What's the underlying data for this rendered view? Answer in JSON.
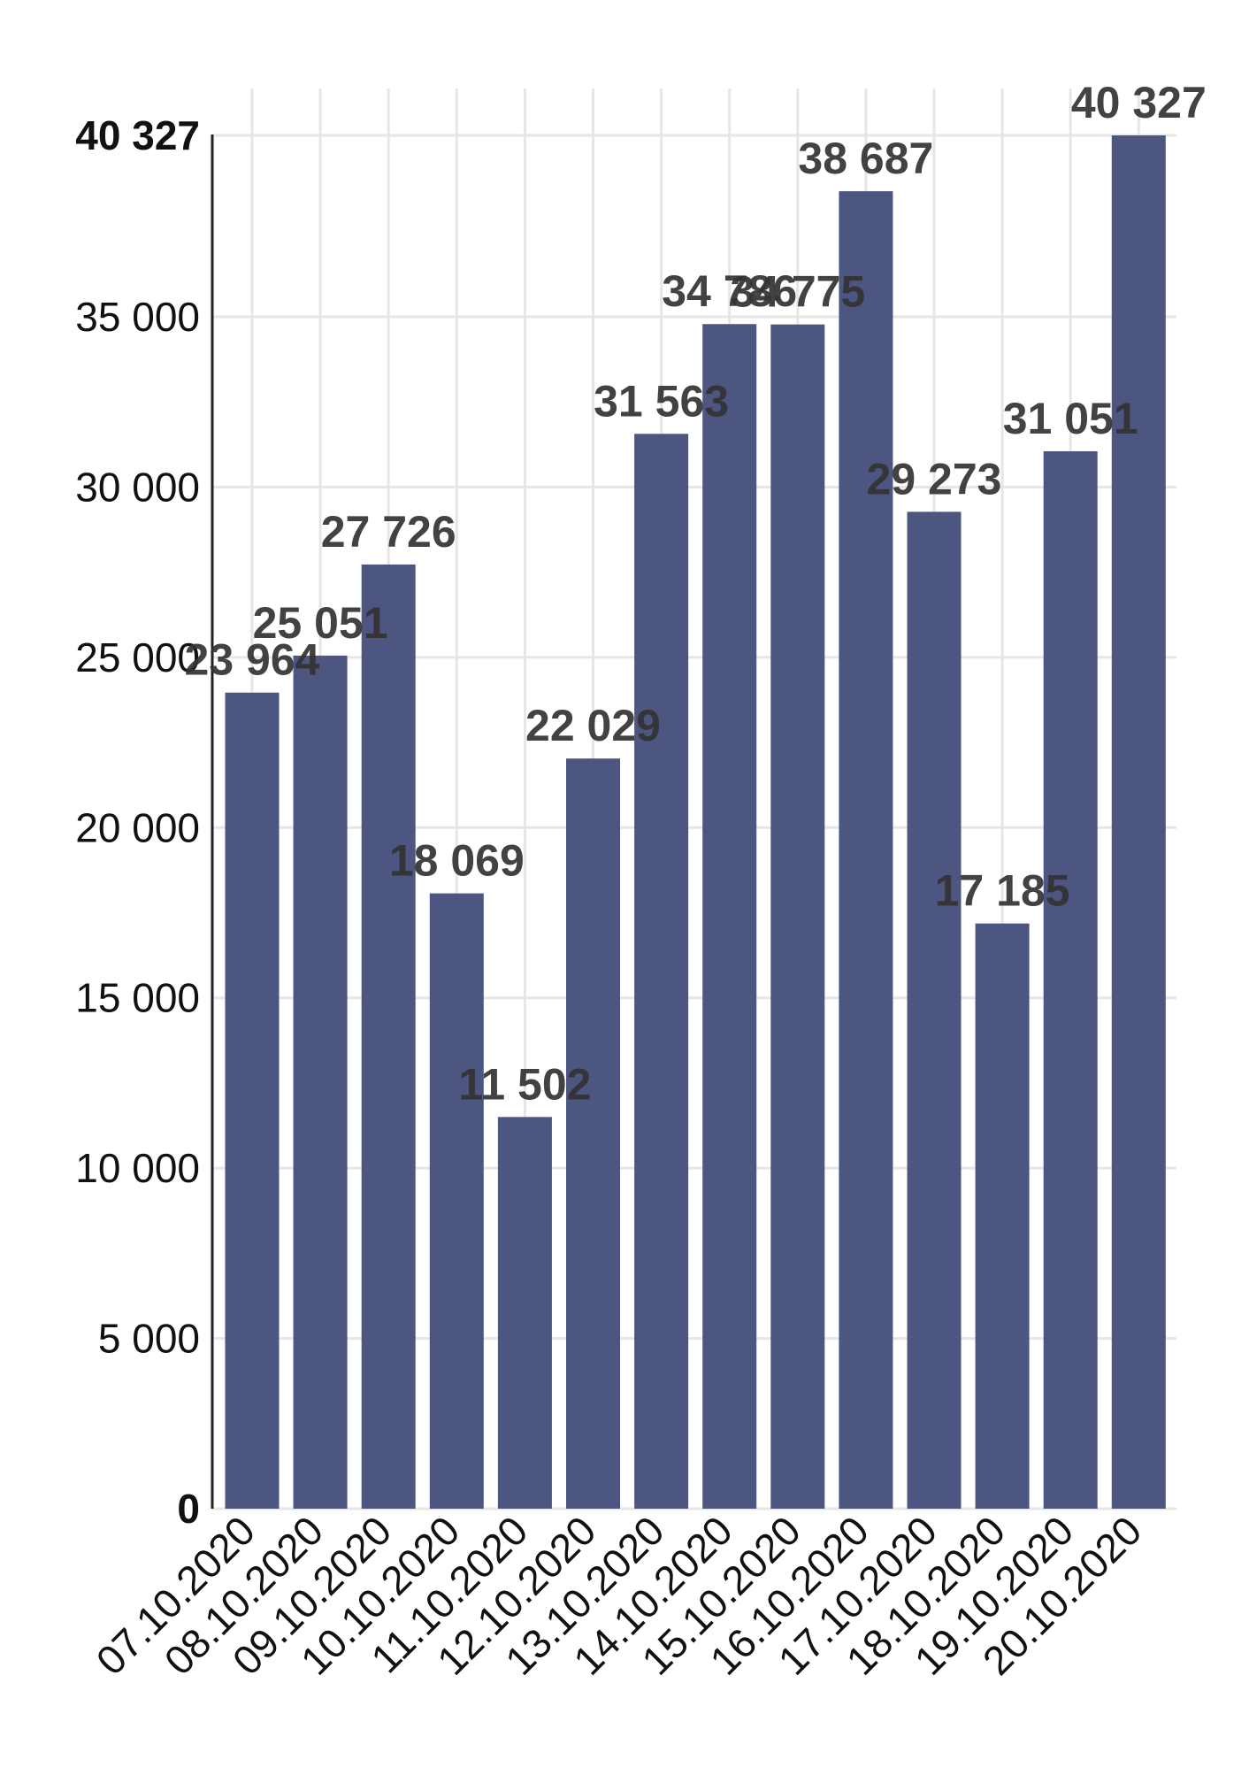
{
  "chart_data": {
    "type": "bar",
    "title": "",
    "xlabel": "",
    "ylabel": "",
    "categories": [
      "07.10.2020",
      "08.10.2020",
      "09.10.2020",
      "10.10.2020",
      "11.10.2020",
      "12.10.2020",
      "13.10.2020",
      "14.10.2020",
      "15.10.2020",
      "16.10.2020",
      "17.10.2020",
      "18.10.2020",
      "19.10.2020",
      "20.10.2020"
    ],
    "values": [
      23964,
      25051,
      27726,
      18069,
      11502,
      22029,
      31563,
      34786,
      34775,
      38687,
      29273,
      17185,
      31051,
      40327
    ],
    "value_labels": [
      "23 964",
      "25 051",
      "27 726",
      "18 069",
      "11 502",
      "22 029",
      "31 563",
      "34 786",
      "34 775",
      "38 687",
      "29 273",
      "17 185",
      "31 051",
      "40 327"
    ],
    "ylim": [
      0,
      40327
    ],
    "yticks": [
      {
        "value": 0,
        "label": "0",
        "bold": true
      },
      {
        "value": 5000,
        "label": "5 000",
        "bold": false
      },
      {
        "value": 10000,
        "label": "10 000",
        "bold": false
      },
      {
        "value": 15000,
        "label": "15 000",
        "bold": false
      },
      {
        "value": 20000,
        "label": "20 000",
        "bold": false
      },
      {
        "value": 25000,
        "label": "25 000",
        "bold": false
      },
      {
        "value": 30000,
        "label": "30 000",
        "bold": false
      },
      {
        "value": 35000,
        "label": "35 000",
        "bold": false
      },
      {
        "value": 40327,
        "label": "40 327",
        "bold": true
      }
    ],
    "grid": true,
    "legend": "none",
    "colors": {
      "bar": "#4d5581",
      "grid": "#e6e6e6",
      "axis": "#222222"
    }
  }
}
